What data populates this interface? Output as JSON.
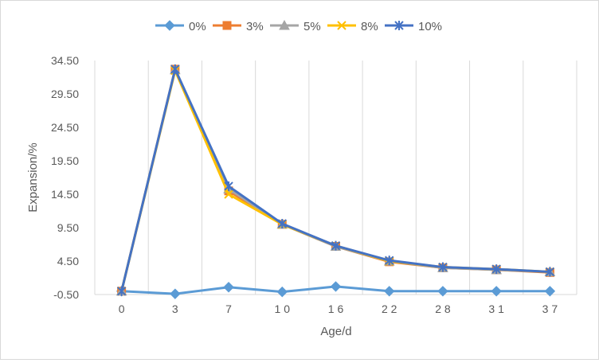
{
  "chart_data": {
    "type": "line",
    "title": "",
    "xlabel": "Age/d",
    "ylabel": "Expansion/%",
    "categories": [
      "0",
      "3",
      "7",
      "10",
      "16",
      "22",
      "28",
      "31",
      "37"
    ],
    "category_labels": [
      "0",
      "3",
      "7",
      "1 0",
      "1 6",
      "2 2",
      "2 8",
      "3 1",
      "3 7"
    ],
    "y_ticks": [
      "34.50",
      "29.50",
      "24.50",
      "19.50",
      "14.50",
      "9.50",
      "4.50",
      "-0.50"
    ],
    "ylim": [
      -0.5,
      34.5
    ],
    "grid": {
      "horizontal": false,
      "vertical": true
    },
    "legend_position": "top",
    "series": [
      {
        "name": "0%",
        "color": "#5B9BD5",
        "marker": "diamond",
        "values": [
          0.0,
          -0.4,
          0.6,
          -0.1,
          0.7,
          0.0,
          0.0,
          0.0,
          0.0
        ]
      },
      {
        "name": "3%",
        "color": "#ED7D31",
        "marker": "square",
        "values": [
          0.0,
          33.2,
          15.0,
          10.0,
          6.7,
          4.4,
          3.5,
          3.2,
          2.8
        ]
      },
      {
        "name": "5%",
        "color": "#A5A5A5",
        "marker": "triangle",
        "values": [
          0.0,
          33.1,
          15.3,
          10.0,
          6.7,
          4.5,
          3.5,
          3.2,
          2.9
        ]
      },
      {
        "name": "8%",
        "color": "#FFC000",
        "marker": "x",
        "values": [
          0.0,
          33.0,
          14.5,
          10.0,
          6.8,
          4.5,
          3.6,
          3.3,
          2.9
        ]
      },
      {
        "name": "10%",
        "color": "#4472C4",
        "marker": "star",
        "values": [
          0.0,
          33.2,
          15.7,
          10.1,
          6.8,
          4.6,
          3.6,
          3.3,
          2.9
        ]
      }
    ]
  }
}
